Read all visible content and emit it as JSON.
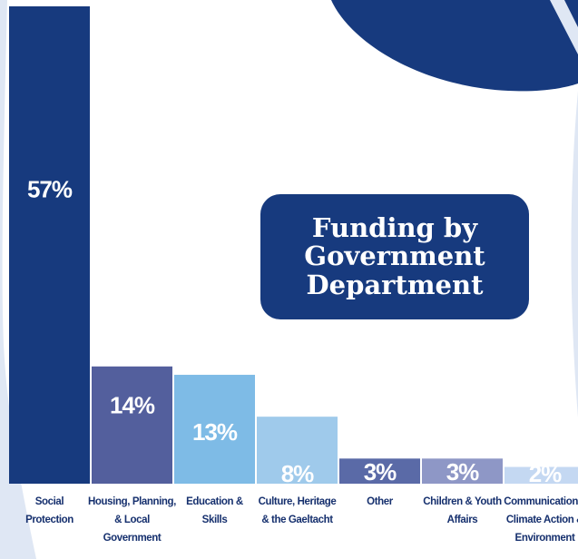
{
  "colors": {
    "background": "#ffffff",
    "decoration_dark": "#173a7e",
    "decoration_light": "#dfe7f4",
    "title_box": "#173a7e",
    "category_text": "#16306e"
  },
  "chart_data": {
    "type": "bar",
    "title": "Funding by Government Department",
    "xlabel": "",
    "ylabel": "",
    "ylim": [
      0,
      57
    ],
    "grid": false,
    "legend": "none",
    "categories": [
      [
        "Social",
        "Protection"
      ],
      [
        "Housing, Planning,",
        "& Local",
        "Government"
      ],
      [
        "Education &",
        "Skills"
      ],
      [
        "Culture, Heritage",
        "& the Gaeltacht"
      ],
      [
        "Other"
      ],
      [
        "Children & Youth",
        "Affairs"
      ],
      [
        "Communications,",
        "Climate Action &",
        "Environment"
      ]
    ],
    "values": [
      57,
      14,
      13,
      8,
      3,
      3,
      2
    ],
    "value_labels": [
      "57%",
      "14%",
      "13%",
      "8%",
      "3%",
      "3%",
      "2%"
    ],
    "bar_colors": [
      "#173a7e",
      "#535f9d",
      "#7ebbe6",
      "#9fcaeb",
      "#5a6aa7",
      "#8e97c6",
      "#c4d8f2"
    ]
  }
}
